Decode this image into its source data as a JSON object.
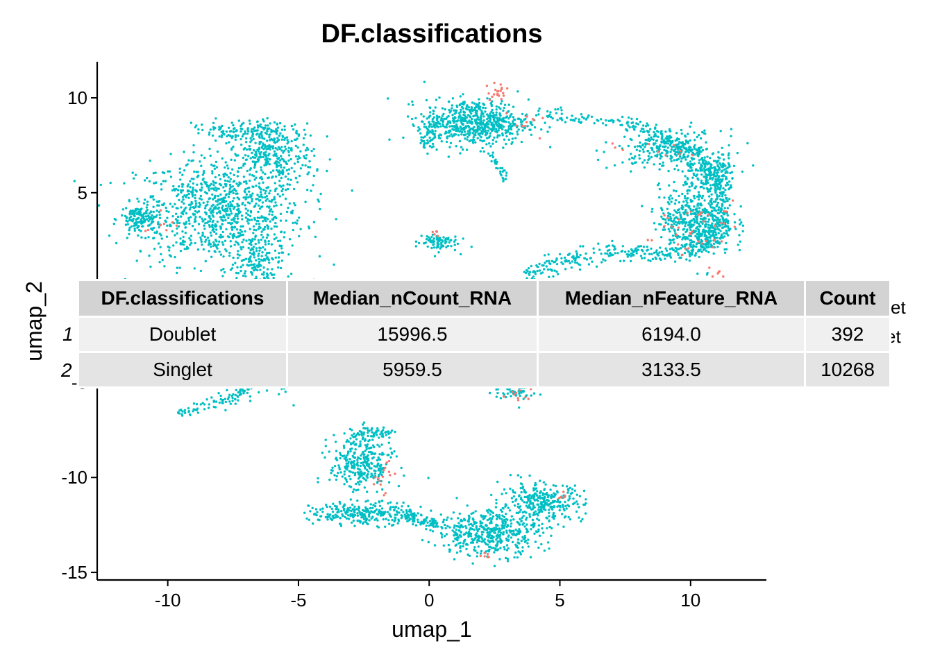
{
  "chart_data": {
    "type": "scatter",
    "title": "DF.classifications",
    "xlabel": "umap_1",
    "ylabel": "umap_2",
    "xlim": [
      -12.7,
      12.9
    ],
    "ylim": [
      -15.4,
      11.9
    ],
    "x_ticks": [
      "-10",
      "-5",
      "0",
      "5",
      "10"
    ],
    "x_tick_values": [
      -10,
      -5,
      0,
      5,
      10
    ],
    "y_ticks": [
      "10",
      "5",
      "0",
      "-5",
      "-10",
      "-15"
    ],
    "y_tick_values": [
      10,
      5,
      0,
      -5,
      -10,
      -15
    ],
    "grid": false,
    "legend_placement": "right",
    "legend_visible_fragments": [
      "et",
      "et"
    ],
    "series": [
      {
        "label": "Doublet",
        "color": "#F8766D",
        "count": 392,
        "clusters": [
          {
            "x": 2.6,
            "y": 10.3,
            "sx": 0.3,
            "sy": 0.3,
            "n": 20
          },
          {
            "x": 3.8,
            "y": 8.5,
            "sx": 0.4,
            "sy": 0.3,
            "n": 10
          },
          {
            "x": 9.6,
            "y": 2.9,
            "sx": 0.7,
            "sy": 0.6,
            "n": 25
          },
          {
            "x": 8.5,
            "y": 7.2,
            "sx": 0.8,
            "sy": 0.3,
            "n": 10
          },
          {
            "x": 11.2,
            "y": 0.6,
            "sx": 0.2,
            "sy": 0.4,
            "n": 10
          },
          {
            "x": 3.4,
            "y": -5.6,
            "sx": 0.3,
            "sy": 0.2,
            "n": 12
          },
          {
            "x": -1.8,
            "y": -9.8,
            "sx": 0.2,
            "sy": 0.5,
            "n": 15
          },
          {
            "x": 2.2,
            "y": -14.1,
            "sx": 0.2,
            "sy": 0.1,
            "n": 6
          },
          {
            "x": 5.1,
            "y": -11.0,
            "sx": 0.1,
            "sy": 0.1,
            "n": 5
          },
          {
            "x": -10.2,
            "y": 3.3,
            "sx": 0.3,
            "sy": 0.3,
            "n": 8
          },
          {
            "x": 0.2,
            "y": 2.9,
            "sx": 0.1,
            "sy": 0.1,
            "n": 5
          },
          {
            "x": 10.8,
            "y": 3.5,
            "sx": 0.4,
            "sy": 0.5,
            "n": 12
          }
        ]
      },
      {
        "label": "Singlet",
        "color": "#00BFC4",
        "count": 10268,
        "clusters": [
          {
            "x": -8.0,
            "y": 4.0,
            "sx": 1.6,
            "sy": 1.4,
            "n": 900
          },
          {
            "x": -6.0,
            "y": 7.0,
            "sx": 0.8,
            "sy": 0.8,
            "n": 300
          },
          {
            "x": -11.0,
            "y": 3.6,
            "sx": 0.4,
            "sy": 0.4,
            "n": 150
          },
          {
            "x": -6.7,
            "y": 1.0,
            "sx": 0.5,
            "sy": 1.0,
            "n": 200
          },
          {
            "x": 1.8,
            "y": 8.7,
            "sx": 1.0,
            "sy": 0.6,
            "n": 600
          },
          {
            "x": 0.3,
            "y": 2.4,
            "sx": 0.4,
            "sy": 0.25,
            "n": 80
          },
          {
            "x": 10.2,
            "y": 3.5,
            "sx": 0.7,
            "sy": 0.9,
            "n": 500
          },
          {
            "x": 10.8,
            "y": 6.0,
            "sx": 0.5,
            "sy": 0.5,
            "n": 180
          },
          {
            "x": 9.2,
            "y": 7.3,
            "sx": 1.0,
            "sy": 0.5,
            "n": 250
          },
          {
            "x": -2.6,
            "y": -9.3,
            "sx": 0.6,
            "sy": 0.8,
            "n": 300
          },
          {
            "x": -2.5,
            "y": -11.9,
            "sx": 1.0,
            "sy": 0.3,
            "n": 200
          },
          {
            "x": 2.3,
            "y": -12.9,
            "sx": 1.0,
            "sy": 0.6,
            "n": 450
          },
          {
            "x": 4.3,
            "y": -11.3,
            "sx": 0.8,
            "sy": 0.5,
            "n": 300
          },
          {
            "x": 3.4,
            "y": -5.3,
            "sx": 0.5,
            "sy": 0.3,
            "n": 80
          },
          {
            "x": -7.0,
            "y": -4.5,
            "sx": 1.0,
            "sy": 0.7,
            "n": 150
          }
        ],
        "paths": [
          {
            "points": [
              [
                4.3,
                9.2
              ],
              [
                7.8,
                8.6
              ],
              [
                9.6,
                7.5
              ],
              [
                11.0,
                5.8
              ],
              [
                11.3,
                3.8
              ],
              [
                10.6,
                2.2
              ],
              [
                9.0,
                1.7
              ],
              [
                7.0,
                1.9
              ],
              [
                5.0,
                1.4
              ],
              [
                3.5,
                0.4
              ]
            ],
            "n": 600,
            "spread": 0.22
          },
          {
            "points": [
              [
                -9.6,
                -6.7
              ],
              [
                -7.5,
                -5.8
              ],
              [
                -6.0,
                -4.5
              ]
            ],
            "n": 120,
            "spread": 0.12
          },
          {
            "points": [
              [
                -4.5,
                -12.0
              ],
              [
                -1.0,
                -12.0
              ],
              [
                0.5,
                -12.5
              ]
            ],
            "n": 150,
            "spread": 0.15
          },
          {
            "points": [
              [
                0.3,
                9.0
              ],
              [
                -0.2,
                7.4
              ]
            ],
            "n": 60,
            "spread": 0.2
          },
          {
            "points": [
              [
                2.4,
                7.0
              ],
              [
                2.9,
                5.7
              ]
            ],
            "n": 30,
            "spread": 0.08
          },
          {
            "points": [
              [
                -8.5,
                8.2
              ],
              [
                -5.5,
                8.3
              ]
            ],
            "n": 120,
            "spread": 0.3
          },
          {
            "points": [
              [
                -2.8,
                -7.7
              ],
              [
                -1.4,
                -7.7
              ]
            ],
            "n": 60,
            "spread": 0.15
          }
        ]
      }
    ],
    "table": {
      "columns": [
        "DF.classifications",
        "Median_nCount_RNA",
        "Median_nFeature_RNA",
        "Count"
      ],
      "rows": [
        {
          "rowname": "1",
          "cells": [
            "Doublet",
            "15996.5",
            "6194.0",
            "392"
          ]
        },
        {
          "rowname": "2",
          "cells": [
            "Singlet",
            "5959.5",
            "3133.5",
            "10268"
          ]
        }
      ]
    }
  }
}
